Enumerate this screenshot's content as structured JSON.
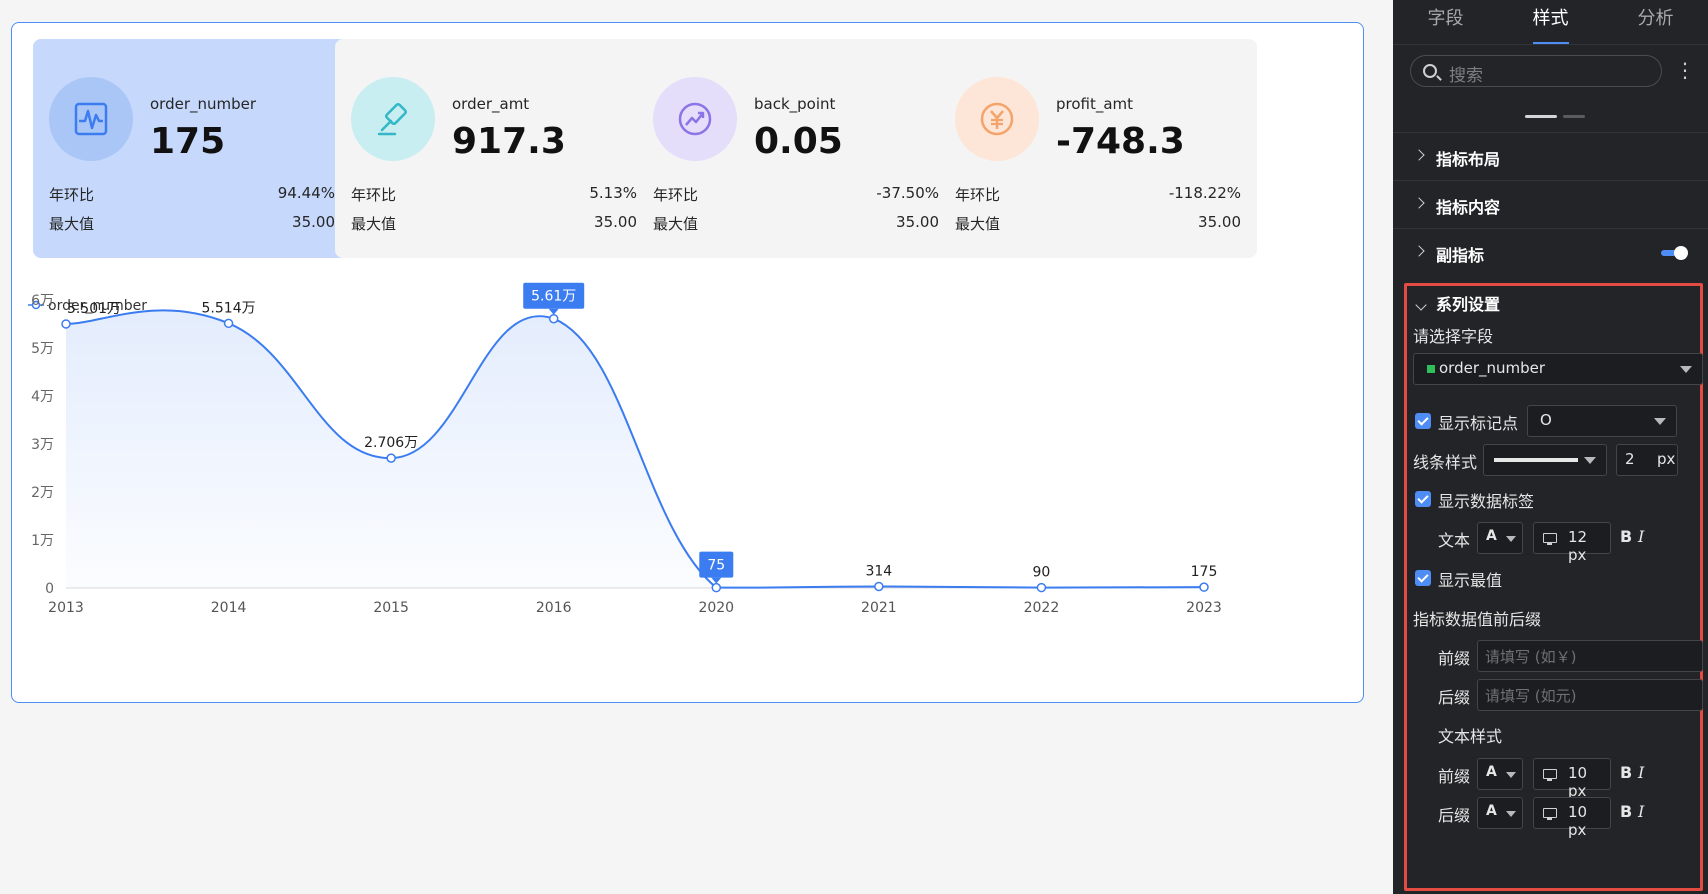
{
  "cards": [
    {
      "title": "order_number",
      "value": "175",
      "yoy_label": "年环比",
      "yoy_value": "94.44%",
      "max_label": "最大值",
      "max_value": "35.00",
      "icon": "pulse-icon",
      "color": "#4e8cf6",
      "bg": "#aac6f7"
    },
    {
      "title": "order_amt",
      "value": "917.3",
      "yoy_label": "年环比",
      "yoy_value": "5.13%",
      "max_label": "最大值",
      "max_value": "35.00",
      "icon": "hammer-icon",
      "color": "#33b8c7",
      "bg": "#c9eef1"
    },
    {
      "title": "back_point",
      "value": "0.05",
      "yoy_label": "年环比",
      "yoy_value": "-37.50%",
      "max_label": "最大值",
      "max_value": "35.00",
      "icon": "trend-up-icon",
      "color": "#8b74e6",
      "bg": "#e4defa"
    },
    {
      "title": "profit_amt",
      "value": "-748.3",
      "yoy_label": "年环比",
      "yoy_value": "-118.22%",
      "max_label": "最大值",
      "max_value": "35.00",
      "icon": "yuan-icon",
      "color": "#f4a36b",
      "bg": "#fde6d7"
    }
  ],
  "chart_data": {
    "type": "line",
    "legend": "order_number",
    "legend_position": "top-left",
    "categories": [
      "2013",
      "2014",
      "2015",
      "2016",
      "2020",
      "2021",
      "2022",
      "2023"
    ],
    "values": [
      55010,
      55140,
      27060,
      56100,
      75,
      314,
      90,
      175
    ],
    "data_labels": [
      "5.501万",
      "5.514万",
      "2.706万",
      "5.61万",
      "75",
      "314",
      "90",
      "175"
    ],
    "highlighted": [
      3,
      4
    ],
    "yticks": [
      "0",
      "1万",
      "2万",
      "3万",
      "4万",
      "5万",
      "6万"
    ],
    "ylim": [
      0,
      60000
    ],
    "color": "#3b7cf0",
    "smooth": true,
    "area_fill": true
  },
  "panel": {
    "tabs": [
      "字段",
      "样式",
      "分析"
    ],
    "active_tab": 1,
    "search_placeholder": "搜索",
    "more_label": "⋮",
    "sections": [
      "指标布局",
      "指标内容",
      "副指标"
    ],
    "series": {
      "title": "系列设置",
      "select_field_label": "请选择字段",
      "field_value": "order_number",
      "field_color": "#2fbf5a",
      "show_marker_label": "显示标记点",
      "marker_value": "O",
      "line_style_label": "线条样式",
      "line_width": "2",
      "px_unit": "px",
      "show_data_label_label": "显示数据标签",
      "text_label": "文本",
      "font_a": "A",
      "text_size": "12 px",
      "bold": "B",
      "italic": "I",
      "show_extreme_label": "显示最值",
      "affix_label": "指标数据值前后缀",
      "prefix_label": "前缀",
      "prefix_placeholder": "请填写 (如￥)",
      "suffix_label": "后缀",
      "suffix_placeholder": "请填写 (如元)",
      "text_style_label": "文本样式",
      "prefix_size": "10 px",
      "suffix_size": "10 px"
    }
  }
}
